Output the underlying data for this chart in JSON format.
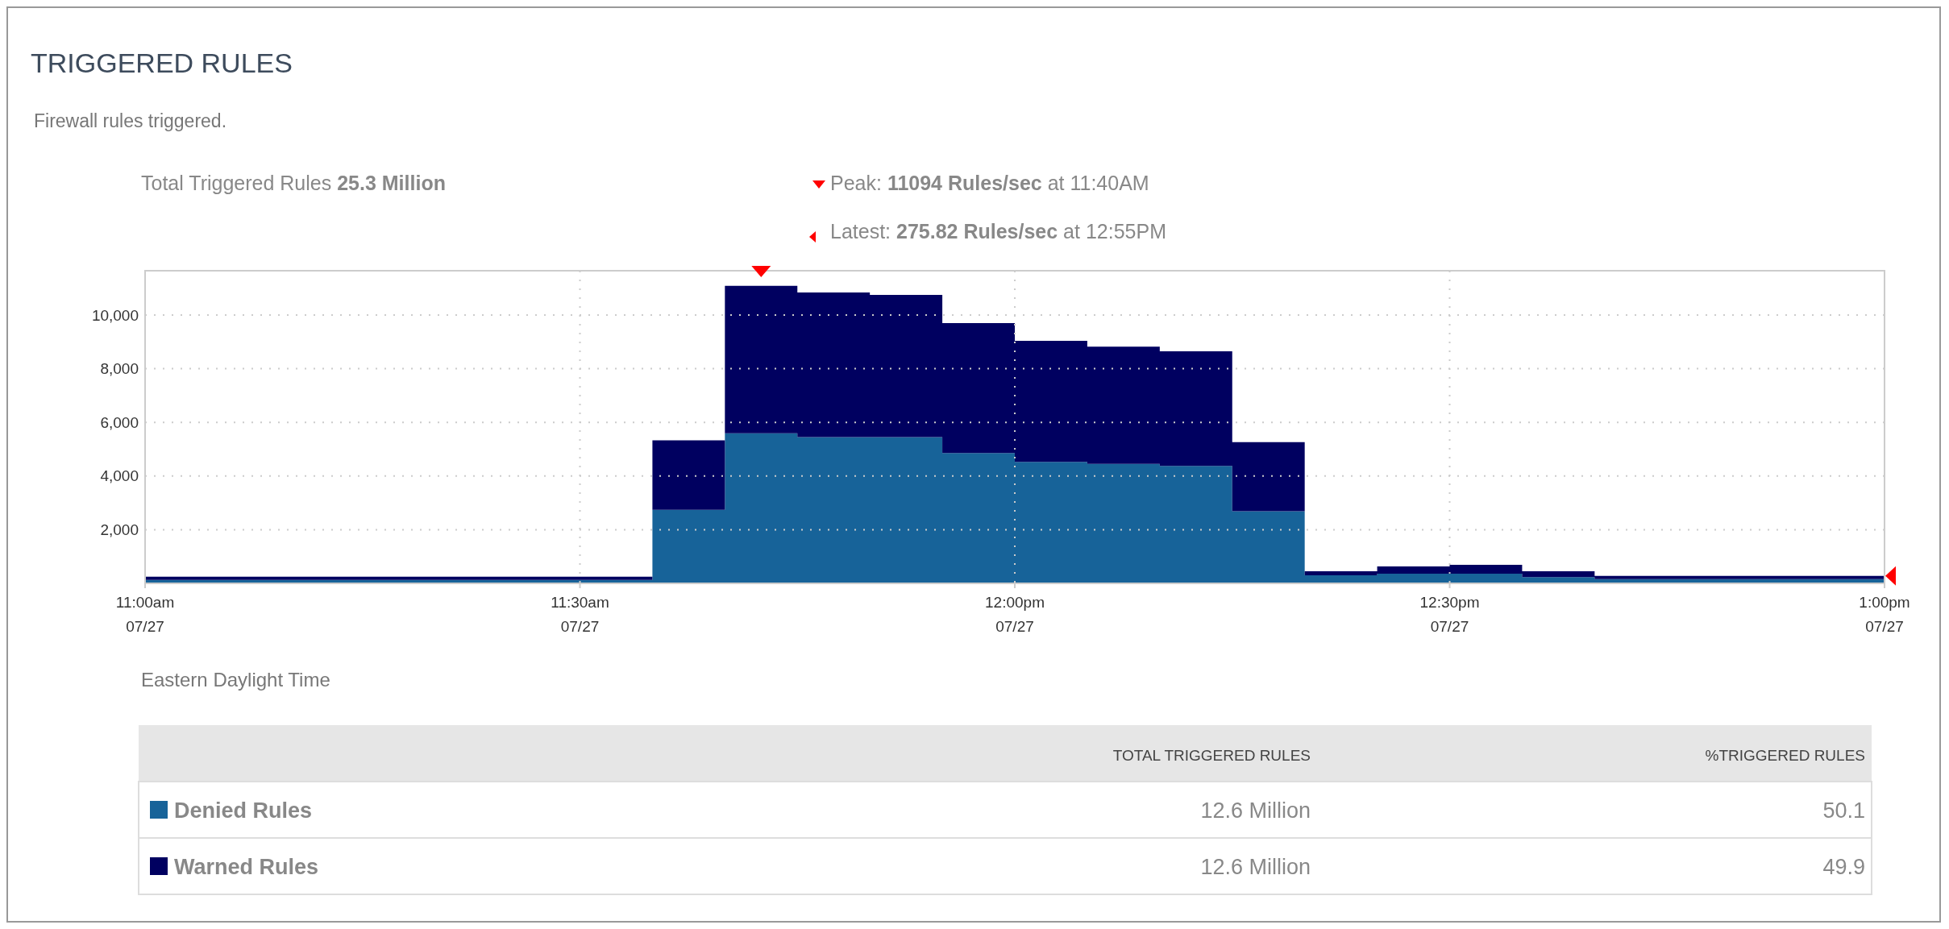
{
  "chart_data": {
    "type": "area",
    "title": "TRIGGERED RULES",
    "subtitle": "Firewall rules triggered.",
    "xlabel": "Eastern Daylight Time",
    "stacked": true,
    "categories": [
      "11:00am\n07/27",
      null,
      null,
      null,
      null,
      null,
      "11:30am\n07/27",
      null,
      null,
      null,
      null,
      null,
      "12:00pm\n07/27",
      null,
      null,
      null,
      null,
      null,
      "12:30pm\n07/27",
      null,
      null,
      null,
      null,
      null,
      "1:00pm\n07/27"
    ],
    "series": [
      {
        "name": "Denied Rules",
        "color": "#176399",
        "values": [
          130,
          130,
          130,
          130,
          130,
          130,
          130,
          2740,
          5590,
          5450,
          5450,
          4860,
          4530,
          4450,
          4380,
          2690,
          300,
          360,
          360,
          230,
          160,
          160,
          160,
          160,
          160
        ]
      },
      {
        "name": "Warned Rules",
        "color": "#000060",
        "values": [
          120,
          120,
          120,
          120,
          120,
          120,
          120,
          2590,
          5500,
          5390,
          5300,
          4840,
          4510,
          4370,
          4270,
          2570,
          150,
          270,
          330,
          220,
          120,
          120,
          120,
          120,
          120
        ]
      }
    ],
    "ylim": [
      0,
      11650
    ],
    "yticks": [
      {
        "value": 2000,
        "label": "2,000"
      },
      {
        "value": 4000,
        "label": "4,000"
      },
      {
        "value": 6000,
        "label": "6,000"
      },
      {
        "value": 8000,
        "label": "8,000"
      },
      {
        "value": 10000,
        "label": "10,000"
      }
    ],
    "grid": true,
    "legend": "bottom",
    "annotations": [
      "Total Triggered Rules 25.3 Million",
      "Peak: 11094 Rules/sec at 11:40AM",
      "Latest: 275.82 Rules/sec at 12:55PM",
      "TOTAL TRIGGERED RULES",
      "%TRIGGERED RULES",
      "12.6 Million",
      "50.1",
      "12.6 Million",
      "49.9"
    ]
  }
}
